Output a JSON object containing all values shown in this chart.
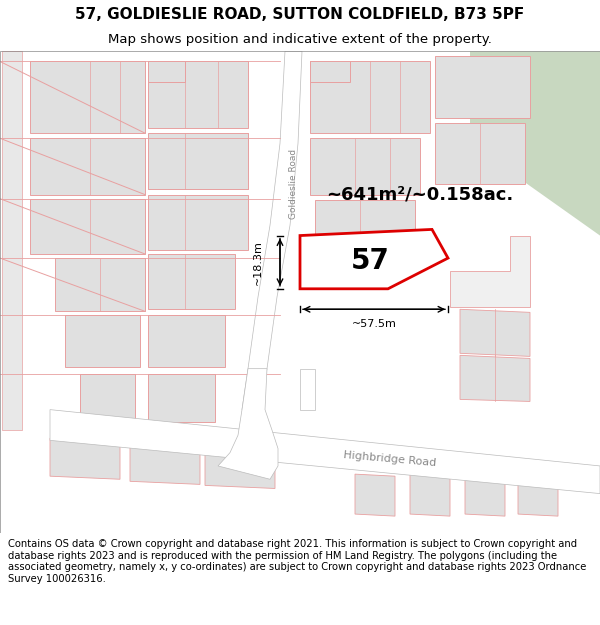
{
  "title": "57, GOLDIESLIE ROAD, SUTTON COLDFIELD, B73 5PF",
  "subtitle": "Map shows position and indicative extent of the property.",
  "footer": "Contains OS data © Crown copyright and database right 2021. This information is subject to Crown copyright and database rights 2023 and is reproduced with the permission of HM Land Registry. The polygons (including the associated geometry, namely x, y co-ordinates) are subject to Crown copyright and database rights 2023 Ordnance Survey 100026316.",
  "area_label": "~641m²/~0.158ac.",
  "property_number": "57",
  "dim_width": "~57.5m",
  "dim_height": "~18.3m",
  "road_label_vertical": "Goldieslie Road",
  "road_label_bottom": "Highbridge Road",
  "bg_color": "#ffffff",
  "map_bg": "#ffffff",
  "block_fill": "#e0e0e0",
  "block_stroke": "#e8a0a0",
  "road_fill": "#ffffff",
  "road_stroke": "#bbbbbb",
  "road_center_stroke": "#cccccc",
  "highlight_stroke": "#dd0000",
  "highlight_fill": "#ffffff",
  "green_patch": "#c8d8c0",
  "title_fontsize": 11,
  "subtitle_fontsize": 9.5,
  "footer_fontsize": 7.2
}
